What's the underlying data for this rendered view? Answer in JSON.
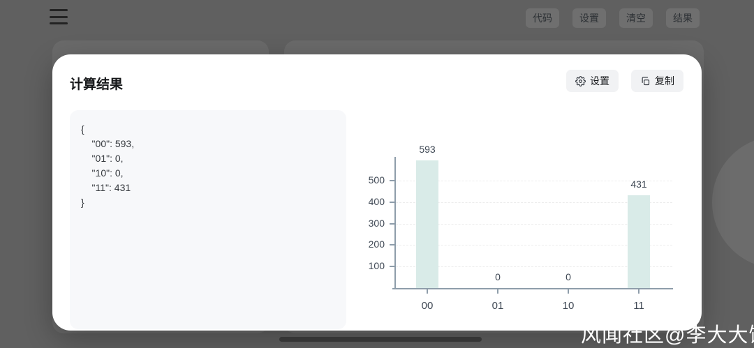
{
  "topbar": {
    "buttons": [
      {
        "label": "代码"
      },
      {
        "label": "设置"
      },
      {
        "label": "清空"
      },
      {
        "label": "结果"
      }
    ]
  },
  "modal": {
    "title": "计算结果",
    "settings_button": {
      "icon": "gear-icon",
      "label": "设置"
    },
    "copy_button": {
      "icon": "copy-icon",
      "label": "复制"
    },
    "result_json": "{\n    \"00\": 593,\n    \"01\": 0,\n    \"10\": 0,\n    \"11\": 431\n}"
  },
  "chart_data": {
    "type": "bar",
    "categories": [
      "00",
      "01",
      "10",
      "11"
    ],
    "values": [
      593,
      0,
      0,
      431
    ],
    "title": "",
    "xlabel": "",
    "ylabel": "",
    "yticks": [
      100,
      200,
      300,
      400,
      500
    ],
    "ylim": [
      0,
      610
    ],
    "grid": "dashed-horizontal",
    "legend": "none",
    "bar_color": "#d9ebe8",
    "axis_color": "#8e9daa",
    "label_color": "#3f4854"
  },
  "watermark": "风闻社区@李大大饼"
}
